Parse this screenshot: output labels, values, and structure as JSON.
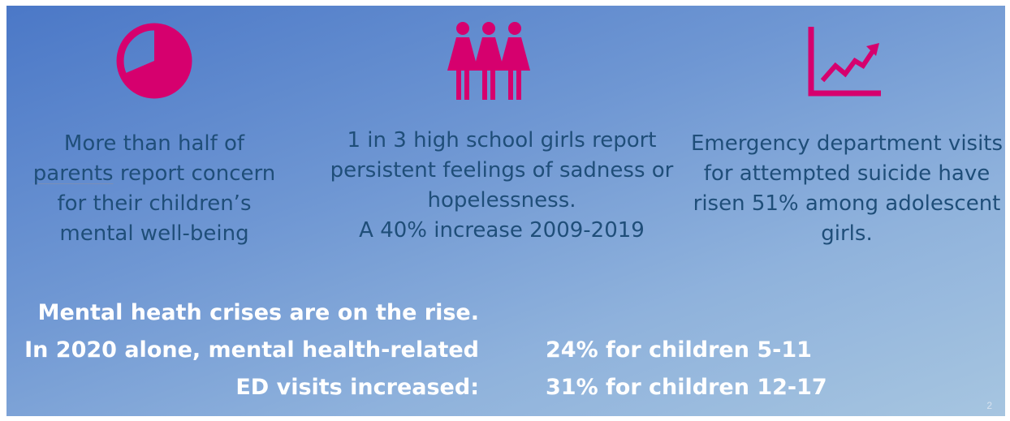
{
  "colors": {
    "accent": "#d6006e",
    "text_dark": "#1f4e79",
    "text_light": "#ffffff"
  },
  "columns": [
    {
      "icon": "pie-chart-icon",
      "text": {
        "line1": "More than half of",
        "line2_word": "parents",
        "line2_rest": " report concern",
        "line3": "for their children’s",
        "line4": "mental well-being"
      }
    },
    {
      "icon": "three-girls-icon",
      "text": {
        "line1": "1 in 3 high school girls report",
        "line2": "persistent feelings of sadness or",
        "line3": "hopelessness.",
        "line4": "A 40% increase 2009-2019"
      }
    },
    {
      "icon": "trend-up-chart-icon",
      "text": {
        "line1": "Emergency department visits",
        "line2": "for attempted suicide have",
        "line3": "risen 51% among adolescent",
        "line4": "girls."
      }
    }
  ],
  "summary": {
    "line1": "Mental heath crises are on the rise.",
    "line2": "In 2020 alone, mental health-related",
    "line3": "ED visits increased:",
    "stat1": "24% for children 5-11",
    "stat2": "31% for children 12-17"
  },
  "page_number": "2"
}
